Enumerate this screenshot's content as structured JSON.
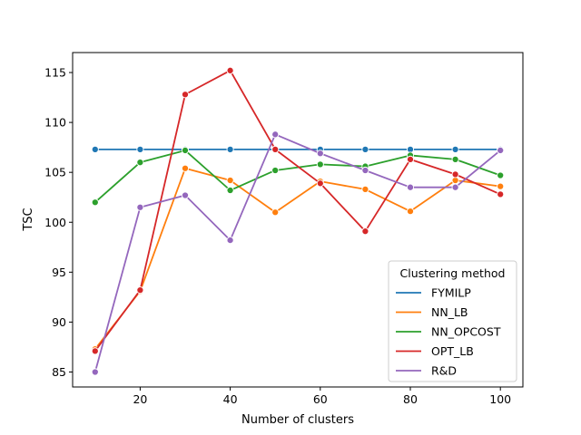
{
  "chart_data": {
    "type": "line",
    "xlabel": "Number of clusters",
    "ylabel": "TSC",
    "xlim": [
      5,
      105
    ],
    "ylim": [
      83.5,
      117
    ],
    "x_ticks": [
      20,
      40,
      60,
      80,
      100
    ],
    "y_ticks": [
      85,
      90,
      95,
      100,
      105,
      110,
      115
    ],
    "grid": false,
    "legend": {
      "title": "Clustering method",
      "placement": "lower-right"
    },
    "x": [
      10,
      20,
      30,
      40,
      50,
      60,
      70,
      80,
      90,
      100
    ],
    "series": [
      {
        "name": "FYMILP",
        "color": "#1f77b4",
        "values": [
          107.3,
          107.3,
          107.3,
          107.3,
          107.3,
          107.3,
          107.3,
          107.3,
          107.3,
          107.3
        ]
      },
      {
        "name": "NN_LB",
        "color": "#ff7f0e",
        "values": [
          87.3,
          93.1,
          105.4,
          104.2,
          101.0,
          104.1,
          103.3,
          101.1,
          104.2,
          103.6
        ]
      },
      {
        "name": "NN_OPCOST",
        "color": "#2ca02c",
        "values": [
          102.0,
          106.0,
          107.2,
          103.2,
          105.2,
          105.8,
          105.6,
          106.7,
          106.3,
          104.7
        ]
      },
      {
        "name": "OPT_LB",
        "color": "#d62728",
        "values": [
          87.1,
          93.2,
          112.8,
          115.2,
          107.3,
          103.9,
          99.1,
          106.3,
          104.8,
          102.8
        ]
      },
      {
        "name": "R&D",
        "color": "#9467bd",
        "values": [
          85.0,
          101.5,
          102.7,
          98.2,
          108.8,
          106.9,
          105.2,
          103.5,
          103.5,
          107.2
        ]
      }
    ]
  }
}
